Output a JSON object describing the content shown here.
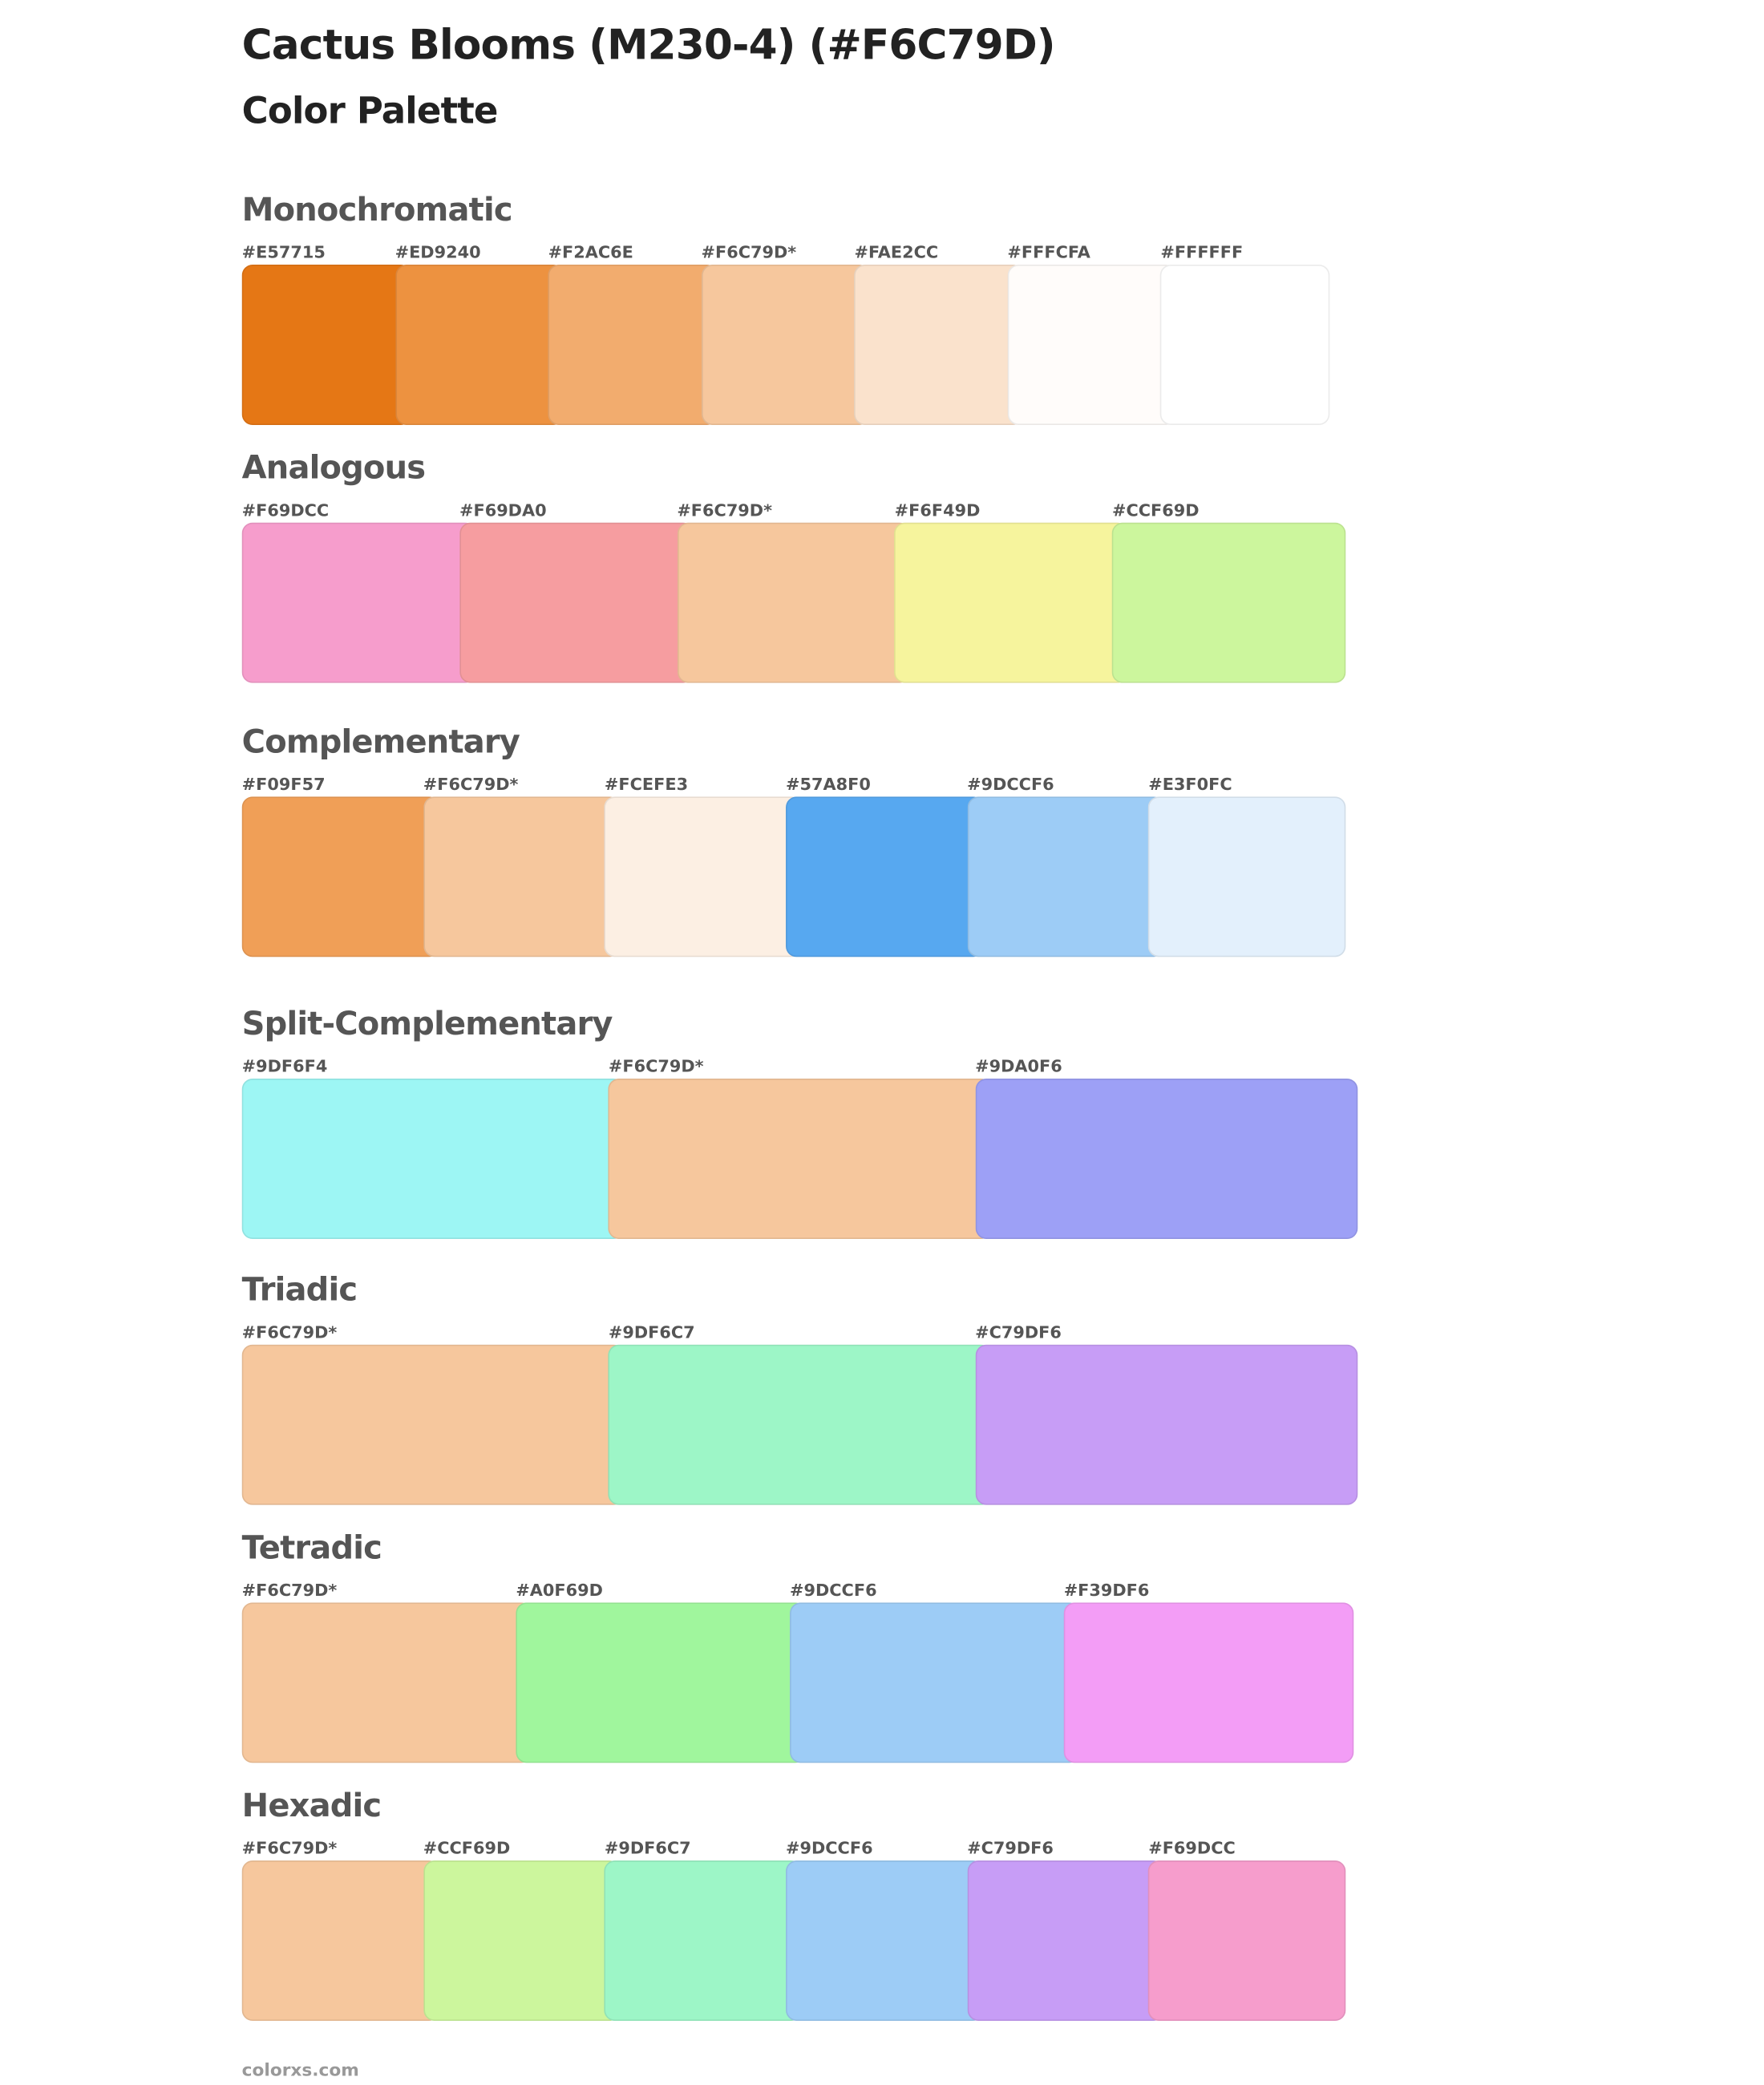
{
  "title": "Cactus Blooms (M230-4) (#F6C79D)",
  "subtitle": "Color Palette",
  "footer": "colorxs.com",
  "sections": [
    {
      "name": "Monochromatic",
      "swatches": [
        {
          "label": "#E57715",
          "color": "#E57715"
        },
        {
          "label": "#ED9240",
          "color": "#ED9240"
        },
        {
          "label": "#F2AC6E",
          "color": "#F2AC6E"
        },
        {
          "label": "#F6C79D*",
          "color": "#F6C79D"
        },
        {
          "label": "#FAE2CC",
          "color": "#FAE2CC"
        },
        {
          "label": "#FFFCFA",
          "color": "#FFFCFA"
        },
        {
          "label": "#FFFFFF",
          "color": "#FFFFFF"
        }
      ]
    },
    {
      "name": "Analogous",
      "swatches": [
        {
          "label": "#F69DCC",
          "color": "#F69DCC"
        },
        {
          "label": "#F69DA0",
          "color": "#F69DA0"
        },
        {
          "label": "#F6C79D*",
          "color": "#F6C79D"
        },
        {
          "label": "#F6F49D",
          "color": "#F6F49D"
        },
        {
          "label": "#CCF69D",
          "color": "#CCF69D"
        }
      ]
    },
    {
      "name": "Complementary",
      "swatches": [
        {
          "label": "#F09F57",
          "color": "#F09F57"
        },
        {
          "label": "#F6C79D*",
          "color": "#F6C79D"
        },
        {
          "label": "#FCEFE3",
          "color": "#FCEFE3"
        },
        {
          "label": "#57A8F0",
          "color": "#57A8F0"
        },
        {
          "label": "#9DCCF6",
          "color": "#9DCCF6"
        },
        {
          "label": "#E3F0FC",
          "color": "#E3F0FC"
        }
      ]
    },
    {
      "name": "Split-Complementary",
      "swatches": [
        {
          "label": "#9DF6F4",
          "color": "#9DF6F4"
        },
        {
          "label": "#F6C79D*",
          "color": "#F6C79D"
        },
        {
          "label": "#9DA0F6",
          "color": "#9DA0F6"
        }
      ]
    },
    {
      "name": "Triadic",
      "swatches": [
        {
          "label": "#F6C79D*",
          "color": "#F6C79D"
        },
        {
          "label": "#9DF6C7",
          "color": "#9DF6C7"
        },
        {
          "label": "#C79DF6",
          "color": "#C79DF6"
        }
      ]
    },
    {
      "name": "Tetradic",
      "swatches": [
        {
          "label": "#F6C79D*",
          "color": "#F6C79D"
        },
        {
          "label": "#A0F69D",
          "color": "#A0F69D"
        },
        {
          "label": "#9DCCF6",
          "color": "#9DCCF6"
        },
        {
          "label": "#F39DF6",
          "color": "#F39DF6"
        }
      ]
    },
    {
      "name": "Hexadic",
      "swatches": [
        {
          "label": "#F6C79D*",
          "color": "#F6C79D"
        },
        {
          "label": "#CCF69D",
          "color": "#CCF69D"
        },
        {
          "label": "#9DF6C7",
          "color": "#9DF6C7"
        },
        {
          "label": "#9DCCF6",
          "color": "#9DCCF6"
        },
        {
          "label": "#C79DF6",
          "color": "#C79DF6"
        },
        {
          "label": "#F69DCC",
          "color": "#F69DCC"
        }
      ]
    }
  ]
}
